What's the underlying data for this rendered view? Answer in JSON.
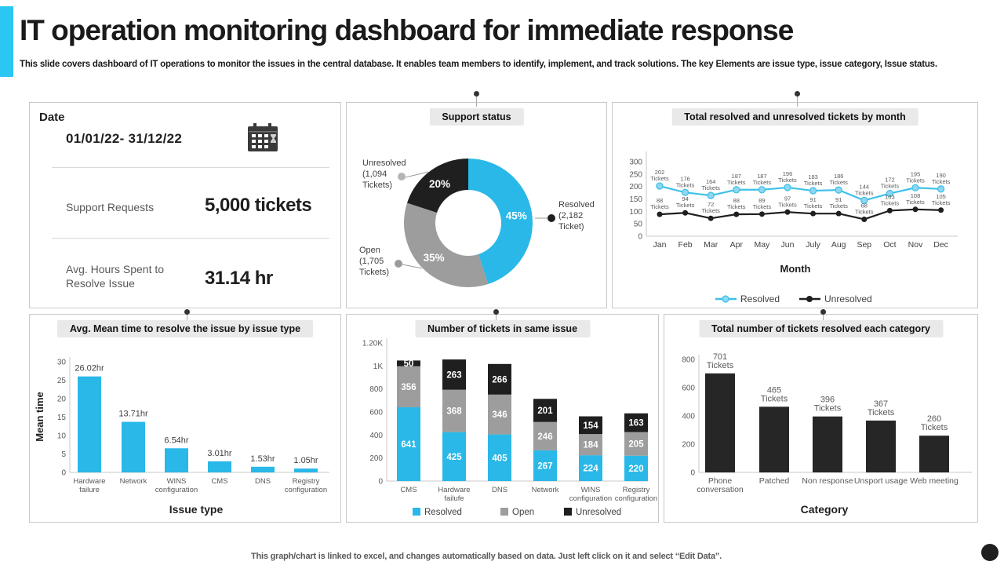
{
  "colors": {
    "cyan": "#29b8e8",
    "accent_cyan": "#2bc7f4",
    "gray": "#9d9d9d",
    "dark": "#1f1f1f",
    "chip_bg": "#e9e9e9",
    "axis": "#c9c9c9",
    "muted_text": "#595959"
  },
  "header": {
    "title": "IT operation monitoring dashboard for immediate response",
    "subtitle": "This slide covers dashboard of IT operations to monitor the issues in the central database. It enables team members to identify, implement, and track solutions. The key Elements are issue type, issue category, Issue status."
  },
  "date_panel": {
    "heading": "Date",
    "range": "01/01/22- 31/12/22",
    "rows": [
      {
        "label": "Support Requests",
        "value": "5,000 tickets"
      },
      {
        "label": "Avg. Hours Spent to Resolve Issue",
        "value": "31.14 hr"
      }
    ]
  },
  "footer": {
    "note": "This graph/chart is linked to excel, and changes automatically based on data. Just left click on it and select “Edit Data”."
  },
  "chart_data": [
    {
      "id": "support_status",
      "type": "pie",
      "title": "Support status",
      "labels": [
        "Resolved",
        "Open",
        "Unresolved"
      ],
      "values": [
        45,
        35,
        20
      ],
      "value_labels": [
        "45%",
        "35%",
        "20%"
      ],
      "colors": [
        "#29b8e8",
        "#9d9d9d",
        "#1f1f1f"
      ],
      "callouts": [
        {
          "lines": [
            "Resolved",
            "(2,182",
            "Ticket)"
          ]
        },
        {
          "lines": [
            "Open",
            "(1,705",
            "Tickets)"
          ]
        },
        {
          "lines": [
            "Unresolved",
            "(1,094",
            "Tickets)"
          ]
        }
      ]
    },
    {
      "id": "tickets_by_month",
      "type": "line",
      "title": "Total resolved and unresolved tickets by month",
      "x": [
        "Jan",
        "Feb",
        "Mar",
        "Apr",
        "May",
        "Jun",
        "July",
        "Aug",
        "Sep",
        "Oct",
        "Nov",
        "Dec"
      ],
      "series": [
        {
          "name": "Resolved",
          "color": "#3fc0e8",
          "values": [
            202,
            176,
            164,
            187,
            187,
            196,
            183,
            186,
            144,
            172,
            195,
            190
          ]
        },
        {
          "name": "Unresolved",
          "color": "#1f1f1f",
          "values": [
            88,
            94,
            72,
            88,
            89,
            97,
            91,
            91,
            68,
            103,
            108,
            105
          ]
        }
      ],
      "label_suffix": "Tickets",
      "xlabel": "Month",
      "ylim": [
        0,
        300
      ],
      "yticks": [
        0,
        50,
        100,
        150,
        200,
        250,
        300
      ],
      "legend_position": "bottom"
    },
    {
      "id": "mean_time",
      "type": "bar",
      "title": "Avg. Mean time to resolve the issue by issue type",
      "categories": [
        "Hardware failure",
        "Network",
        "WINS configuration",
        "CMS",
        "DNS",
        "Registry configuration"
      ],
      "values": [
        26.02,
        13.71,
        6.54,
        3.01,
        1.53,
        1.05
      ],
      "value_labels": [
        "26.02hr",
        "13.71hr",
        "6.54hr",
        "3.01hr",
        "1.53hr",
        "1.05hr"
      ],
      "color": "#29b8e8",
      "xlabel": "Issue type",
      "ylabel": "Mean time",
      "ylim": [
        0,
        30
      ],
      "yticks": [
        0,
        5,
        10,
        15,
        20,
        25,
        30
      ]
    },
    {
      "id": "same_issue",
      "type": "stacked_bar",
      "title": "Number of tickets in same issue",
      "categories": [
        "CMS",
        "Hardware failufe",
        "DNS",
        "Network",
        "WINS configuration",
        "Registry configuration"
      ],
      "series": [
        {
          "name": "Resolved",
          "color": "#29b8e8",
          "values": [
            641,
            425,
            405,
            267,
            224,
            220
          ]
        },
        {
          "name": "Open",
          "color": "#9d9d9d",
          "values": [
            356,
            368,
            346,
            246,
            184,
            205
          ]
        },
        {
          "name": "Unresolved",
          "color": "#1f1f1f",
          "values": [
            50,
            263,
            266,
            201,
            154,
            163
          ]
        }
      ],
      "ylim": [
        0,
        1200
      ],
      "ytick_values": [
        0,
        200,
        400,
        600,
        800,
        1000,
        1200
      ],
      "ytick_labels": [
        "0",
        "200",
        "400",
        "600",
        "800",
        "1K",
        "1.20K"
      ],
      "legend_position": "bottom"
    },
    {
      "id": "category_resolved",
      "type": "bar",
      "title": "Total number of tickets resolved each category",
      "categories": [
        "Phone conversation",
        "Patched",
        "Non response",
        "Unsport usage",
        "Web meeting"
      ],
      "values": [
        701,
        465,
        396,
        367,
        260
      ],
      "label_suffix": "Tickets",
      "color": "#262626",
      "xlabel": "Category",
      "ylim": [
        0,
        800
      ],
      "yticks": [
        0,
        200,
        400,
        600,
        800
      ]
    }
  ]
}
